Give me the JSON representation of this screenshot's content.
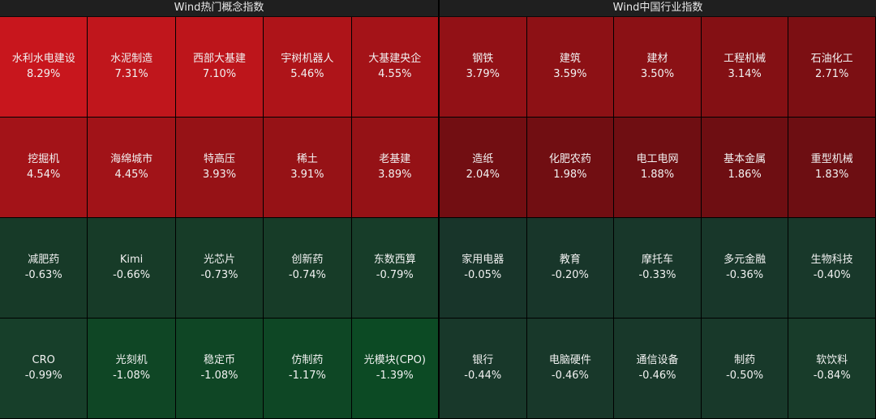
{
  "left": {
    "title": "Wind热门概念指数",
    "rows": [
      [
        {
          "name": "水利水电建设",
          "pct": "8.29%",
          "color": "#c8161d"
        },
        {
          "name": "水泥制造",
          "pct": "7.31%",
          "color": "#c0161c"
        },
        {
          "name": "西部大基建",
          "pct": "7.10%",
          "color": "#bd151b"
        },
        {
          "name": "宇树机器人",
          "pct": "5.46%",
          "color": "#ae1419"
        },
        {
          "name": "大基建央企",
          "pct": "4.55%",
          "color": "#a41318"
        }
      ],
      [
        {
          "name": "挖掘机",
          "pct": "4.54%",
          "color": "#a31318"
        },
        {
          "name": "海绵城市",
          "pct": "4.45%",
          "color": "#a11318"
        },
        {
          "name": "特高压",
          "pct": "3.93%",
          "color": "#961216"
        },
        {
          "name": "稀土",
          "pct": "3.91%",
          "color": "#961216"
        },
        {
          "name": "老基建",
          "pct": "3.89%",
          "color": "#951216"
        }
      ],
      [
        {
          "name": "减肥药",
          "pct": "-0.63%",
          "color": "#173a28"
        },
        {
          "name": "Kimi",
          "pct": "-0.66%",
          "color": "#173b28"
        },
        {
          "name": "光芯片",
          "pct": "-0.73%",
          "color": "#173c28"
        },
        {
          "name": "创新药",
          "pct": "-0.74%",
          "color": "#173c28"
        },
        {
          "name": "东数西算",
          "pct": "-0.79%",
          "color": "#173d29"
        }
      ],
      [
        {
          "name": "CRO",
          "pct": "-0.99%",
          "color": "#173f2a"
        },
        {
          "name": "光刻机",
          "pct": "-1.08%",
          "color": "#0f4625"
        },
        {
          "name": "稳定币",
          "pct": "-1.08%",
          "color": "#0f4625"
        },
        {
          "name": "仿制药",
          "pct": "-1.17%",
          "color": "#0e4725"
        },
        {
          "name": "光模块(CPO)",
          "pct": "-1.39%",
          "color": "#0c4a24"
        }
      ]
    ]
  },
  "right": {
    "title": "Wind中国行业指数",
    "rows": [
      [
        {
          "name": "钢铁",
          "pct": "3.79%",
          "color": "#921116"
        },
        {
          "name": "建筑",
          "pct": "3.59%",
          "color": "#8d1115"
        },
        {
          "name": "建材",
          "pct": "3.50%",
          "color": "#8b1115"
        },
        {
          "name": "工程机械",
          "pct": "3.14%",
          "color": "#841014"
        },
        {
          "name": "石油化工",
          "pct": "2.71%",
          "color": "#7c0f13"
        }
      ],
      [
        {
          "name": "造纸",
          "pct": "2.04%",
          "color": "#720e12"
        },
        {
          "name": "化肥农药",
          "pct": "1.98%",
          "color": "#710e12"
        },
        {
          "name": "电工电网",
          "pct": "1.88%",
          "color": "#6f0e12"
        },
        {
          "name": "基本金属",
          "pct": "1.86%",
          "color": "#6e0e12"
        },
        {
          "name": "重型机械",
          "pct": "1.83%",
          "color": "#6d0e12"
        }
      ],
      [
        {
          "name": "家用电器",
          "pct": "-0.05%",
          "color": "#18352a"
        },
        {
          "name": "教育",
          "pct": "-0.20%",
          "color": "#18362a"
        },
        {
          "name": "摩托车",
          "pct": "-0.33%",
          "color": "#18372a"
        },
        {
          "name": "多元金融",
          "pct": "-0.36%",
          "color": "#18372a"
        },
        {
          "name": "生物科技",
          "pct": "-0.40%",
          "color": "#18382a"
        }
      ],
      [
        {
          "name": "银行",
          "pct": "-0.44%",
          "color": "#18382a"
        },
        {
          "name": "电脑硬件",
          "pct": "-0.46%",
          "color": "#18382a"
        },
        {
          "name": "通信设备",
          "pct": "-0.46%",
          "color": "#18382a"
        },
        {
          "name": "制药",
          "pct": "-0.50%",
          "color": "#18392a"
        },
        {
          "name": "软饮料",
          "pct": "-0.84%",
          "color": "#183c2a"
        }
      ]
    ]
  }
}
